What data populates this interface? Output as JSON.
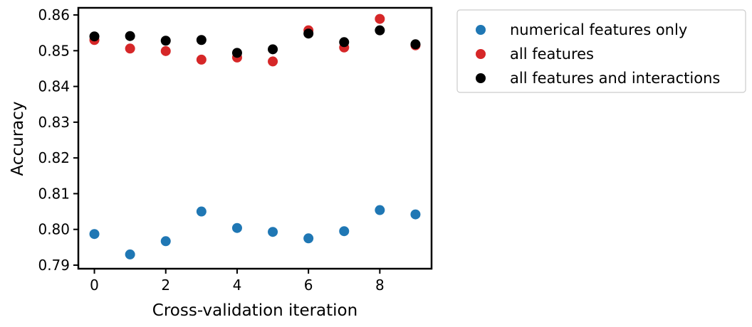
{
  "chart_data": {
    "type": "scatter",
    "title": "",
    "xlabel": "Cross-validation iteration",
    "ylabel": "Accuracy",
    "xlim": [
      -0.45,
      9.45
    ],
    "ylim": [
      0.789,
      0.862
    ],
    "xticks": [
      0,
      2,
      4,
      6,
      8
    ],
    "xtick_labels": [
      "0",
      "2",
      "4",
      "6",
      "8"
    ],
    "yticks": [
      0.79,
      0.8,
      0.81,
      0.82,
      0.83,
      0.84,
      0.85,
      0.86
    ],
    "ytick_labels": [
      "0.79",
      "0.80",
      "0.81",
      "0.82",
      "0.83",
      "0.84",
      "0.85",
      "0.86"
    ],
    "grid": false,
    "legend_position": "outside-upper-right",
    "x": [
      0,
      1,
      2,
      3,
      4,
      5,
      6,
      7,
      8,
      9
    ],
    "series": [
      {
        "name": "numerical features only",
        "color": "#1f77b4",
        "values": [
          0.7987,
          0.793,
          0.7967,
          0.805,
          0.8004,
          0.7993,
          0.7975,
          0.7995,
          0.8054,
          0.8042
        ]
      },
      {
        "name": "all features",
        "color": "#d62728",
        "values": [
          0.853,
          0.8506,
          0.8499,
          0.8475,
          0.8481,
          0.847,
          0.8557,
          0.8509,
          0.8589,
          0.8515
        ]
      },
      {
        "name": "all features and interactions",
        "color": "#000000",
        "values": [
          0.854,
          0.8541,
          0.8528,
          0.853,
          0.8494,
          0.8504,
          0.8548,
          0.8524,
          0.8557,
          0.8518
        ]
      }
    ]
  }
}
